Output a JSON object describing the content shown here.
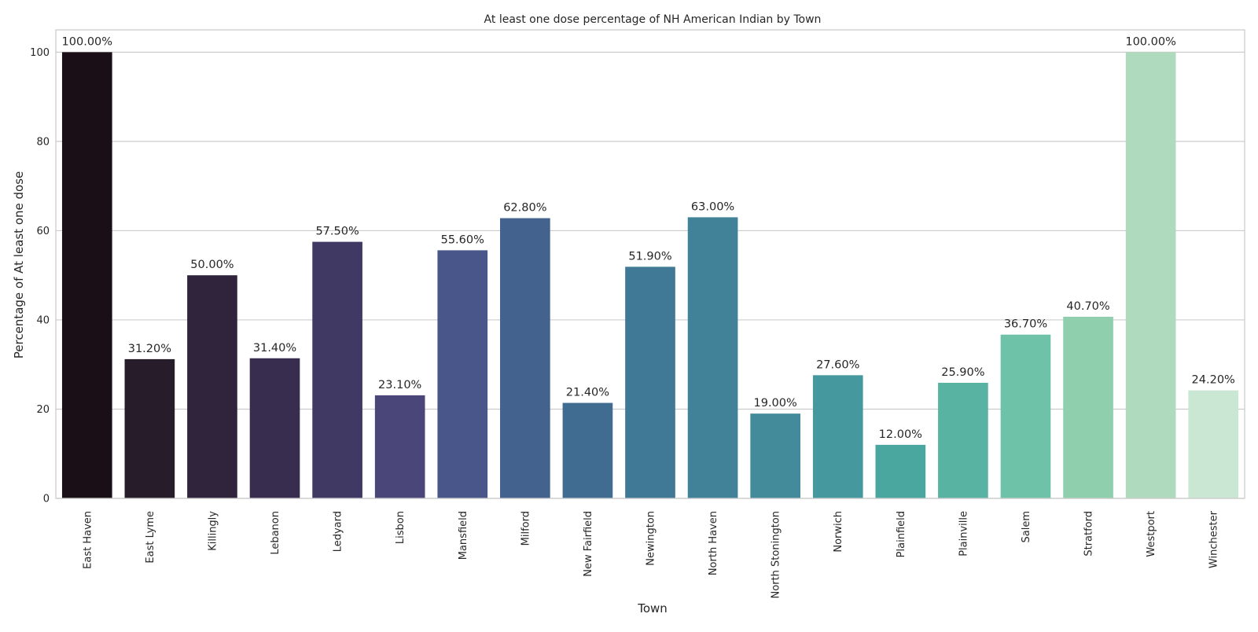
{
  "chart_data": {
    "type": "bar",
    "title": "At least one dose percentage of NH American Indian by Town",
    "xlabel": "Town",
    "ylabel": "Percentage of At least one dose",
    "ylim": [
      0,
      105
    ],
    "yticks": [
      0,
      20,
      40,
      60,
      80,
      100
    ],
    "grid": "horizontal",
    "legend": "none",
    "categories": [
      "East Haven",
      "East Lyme",
      "Killingly",
      "Lebanon",
      "Ledyard",
      "Lisbon",
      "Mansfield",
      "Milford",
      "New Fairfield",
      "Newington",
      "North Haven",
      "North Stonington",
      "Norwich",
      "Plainfield",
      "Plainville",
      "Salem",
      "Stratford",
      "Westport",
      "Winchester"
    ],
    "values": [
      100.0,
      31.2,
      50.0,
      31.4,
      57.5,
      23.1,
      55.6,
      62.8,
      21.4,
      51.9,
      63.0,
      19.0,
      27.6,
      12.0,
      25.9,
      36.7,
      40.7,
      100.0,
      24.2
    ],
    "data_labels": [
      "100.00%",
      "31.20%",
      "50.00%",
      "31.40%",
      "57.50%",
      "23.10%",
      "55.60%",
      "62.80%",
      "21.40%",
      "51.90%",
      "63.00%",
      "19.00%",
      "27.60%",
      "12.00%",
      "25.90%",
      "36.70%",
      "40.70%",
      "100.00%",
      "24.20%"
    ],
    "colors": [
      "#1a0f17",
      "#261c2a",
      "#30243c",
      "#382d4f",
      "#403963",
      "#4a4679",
      "#48568a",
      "#44628e",
      "#416c91",
      "#3f7995",
      "#418298",
      "#438b9b",
      "#45989e",
      "#4aa7a0",
      "#58b3a2",
      "#6ec2a7",
      "#90cfad",
      "#afdabd",
      "#cae7d4"
    ]
  }
}
